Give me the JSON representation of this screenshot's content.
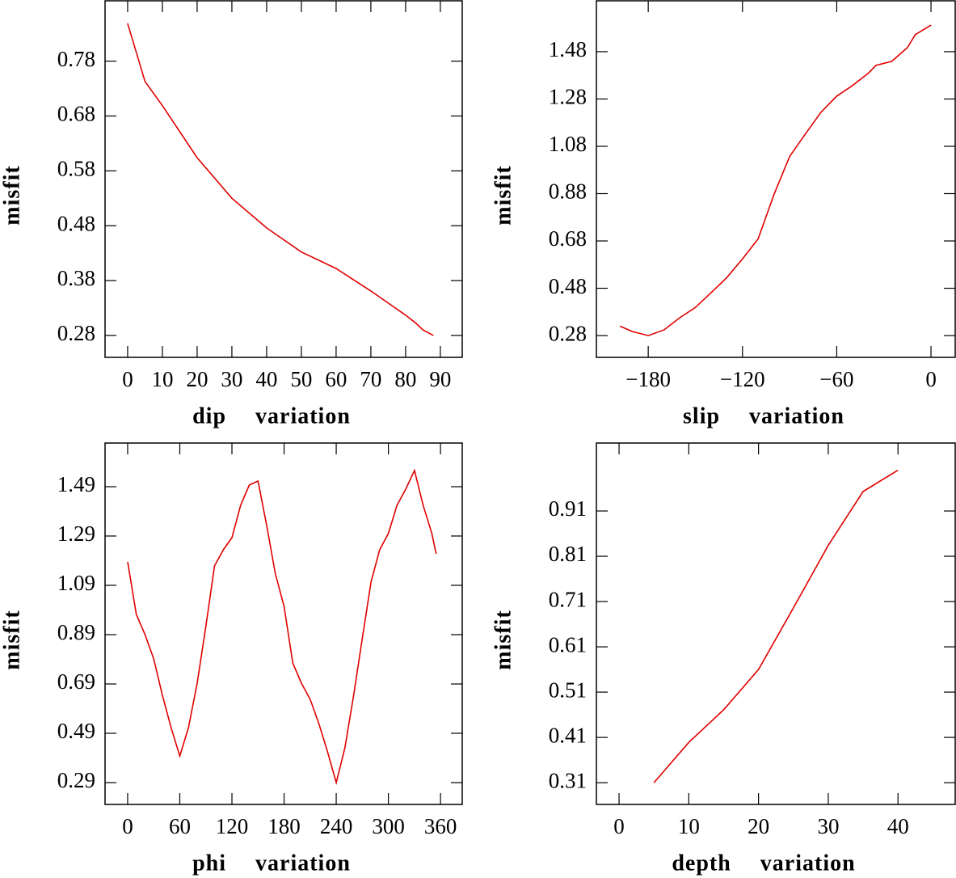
{
  "chart_data": [
    {
      "type": "line",
      "xlabel": "dip variation",
      "ylabel": "misfit",
      "color": "#e00000",
      "x": [
        0,
        5,
        10,
        20,
        30,
        40,
        50,
        60,
        70,
        80,
        83,
        85,
        88
      ],
      "values": [
        0.849,
        0.743,
        0.699,
        0.604,
        0.53,
        0.476,
        0.432,
        0.402,
        0.361,
        0.317,
        0.302,
        0.29,
        0.28
      ],
      "xlim": [
        -6.5,
        96.3
      ],
      "ylim": [
        0.24,
        0.89
      ],
      "xticks": [
        0,
        10,
        20,
        30,
        40,
        50,
        60,
        70,
        80,
        90
      ],
      "yticks": [
        0.28,
        0.38,
        0.48,
        0.58,
        0.68,
        0.78
      ]
    },
    {
      "type": "line",
      "xlabel": "slip variation",
      "ylabel": "misfit",
      "color": "#e00000",
      "x": [
        -198,
        -190,
        -180,
        -170,
        -160,
        -150,
        -140,
        -130,
        -120,
        -110,
        -100,
        -90,
        -80,
        -70,
        -60,
        -50,
        -40,
        -35,
        -25,
        -15,
        -10,
        0
      ],
      "values": [
        0.32,
        0.297,
        0.28,
        0.304,
        0.355,
        0.399,
        0.461,
        0.525,
        0.604,
        0.689,
        0.876,
        1.037,
        1.132,
        1.224,
        1.292,
        1.337,
        1.388,
        1.422,
        1.439,
        1.497,
        1.552,
        1.592
      ],
      "xlim": [
        -213,
        15.4
      ],
      "ylim": [
        0.188,
        1.695
      ],
      "xticks": [
        {
          "value": -180,
          "label": "−180"
        },
        {
          "value": -120,
          "label": "−120"
        },
        {
          "value": -60,
          "label": "−60"
        },
        0
      ],
      "yticks": [
        0.28,
        0.48,
        0.68,
        0.88,
        1.08,
        1.28,
        1.48
      ]
    },
    {
      "type": "line",
      "xlabel": "phi variation",
      "ylabel": "misfit",
      "color": "#e00000",
      "x": [
        0,
        10,
        20,
        30,
        40,
        50,
        60,
        70,
        80,
        90,
        100,
        110,
        120,
        130,
        140,
        150,
        160,
        170,
        180,
        190,
        200,
        210,
        220,
        230,
        240,
        250,
        260,
        270,
        280,
        290,
        300,
        310,
        320,
        330,
        340,
        350,
        355
      ],
      "values": [
        1.185,
        0.972,
        0.89,
        0.792,
        0.644,
        0.513,
        0.398,
        0.513,
        0.693,
        0.923,
        1.169,
        1.234,
        1.283,
        1.415,
        1.497,
        1.513,
        1.333,
        1.136,
        1.005,
        0.775,
        0.693,
        0.628,
        0.529,
        0.415,
        0.29,
        0.431,
        0.644,
        0.874,
        1.103,
        1.234,
        1.3,
        1.415,
        1.48,
        1.556,
        1.415,
        1.3,
        1.218
      ],
      "xlim": [
        -26,
        385
      ],
      "ylim": [
        0.2015,
        1.667
      ],
      "xticks": [
        0,
        60,
        120,
        180,
        240,
        300,
        360
      ],
      "yticks": [
        0.29,
        0.49,
        0.69,
        0.89,
        1.09,
        1.29,
        1.49
      ]
    },
    {
      "type": "line",
      "xlabel": "depth variation",
      "ylabel": "misfit",
      "color": "#e00000",
      "x": [
        5,
        10,
        15,
        20,
        25,
        30,
        35,
        40
      ],
      "values": [
        0.31,
        0.399,
        0.471,
        0.56,
        0.696,
        0.834,
        0.953,
        1.0
      ],
      "xlim": [
        -3.25,
        48.2
      ],
      "ylim": [
        0.262,
        1.06
      ],
      "xticks": [
        0,
        10,
        20,
        30,
        40
      ],
      "yticks": [
        0.31,
        0.41,
        0.51,
        0.61,
        0.71,
        0.81,
        0.91
      ]
    }
  ]
}
